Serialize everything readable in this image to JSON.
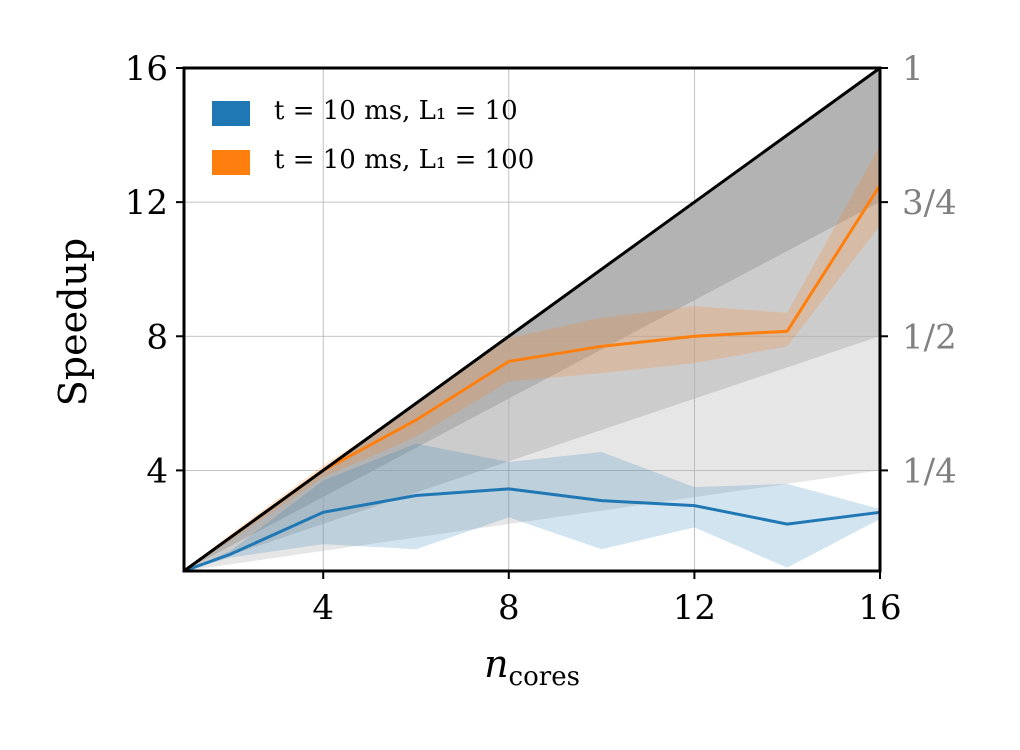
{
  "chart_data": {
    "type": "line",
    "xlabel_main": "n",
    "xlabel_sub": "cores",
    "ylabel": "Speedup",
    "xlim": [
      1,
      16
    ],
    "ylim": [
      1,
      16
    ],
    "x_ticks": [
      "4",
      "8",
      "12",
      "16"
    ],
    "x_tick_values": [
      4,
      8,
      12,
      16
    ],
    "y_ticks": [
      "4",
      "8",
      "12",
      "16"
    ],
    "y_tick_values": [
      4,
      8,
      12,
      16
    ],
    "right_ticks": [
      "1/4",
      "1/2",
      "3/4",
      "1"
    ],
    "right_tick_values": [
      0.25,
      0.5,
      0.75,
      1
    ],
    "efficiency_bands": [
      1,
      0.75,
      0.5,
      0.25
    ],
    "grid": true,
    "series": [
      {
        "name": "t = 10 ms, L1 = 10",
        "legend_text": "t = 10 ms, L₁ = 10",
        "color": "#1f77b4",
        "x": [
          1,
          2,
          4,
          6,
          8,
          10,
          12,
          14,
          16
        ],
        "values": [
          1,
          1.5,
          2.75,
          3.25,
          3.45,
          3.1,
          2.95,
          2.4,
          2.75
        ],
        "lower": [
          1,
          1.4,
          1.8,
          1.65,
          2.6,
          1.65,
          2.3,
          1.1,
          2.55
        ],
        "upper": [
          1,
          1.6,
          3.7,
          4.8,
          4.25,
          4.55,
          3.5,
          3.6,
          2.85
        ]
      },
      {
        "name": "t = 10 ms, L1 = 100",
        "legend_text": "t = 10 ms, L₁ = 100",
        "color": "#ff7f0e",
        "x": [
          1,
          2,
          4,
          6,
          8,
          10,
          12,
          14,
          16
        ],
        "values": [
          1,
          2,
          4,
          5.5,
          7.25,
          7.7,
          8.0,
          8.15,
          12.5
        ],
        "lower": [
          1,
          1.9,
          3.8,
          5.0,
          6.65,
          6.9,
          7.2,
          7.7,
          11.3
        ],
        "upper": [
          1,
          2.1,
          4.15,
          5.95,
          7.95,
          8.55,
          8.9,
          8.7,
          13.7
        ]
      }
    ]
  }
}
